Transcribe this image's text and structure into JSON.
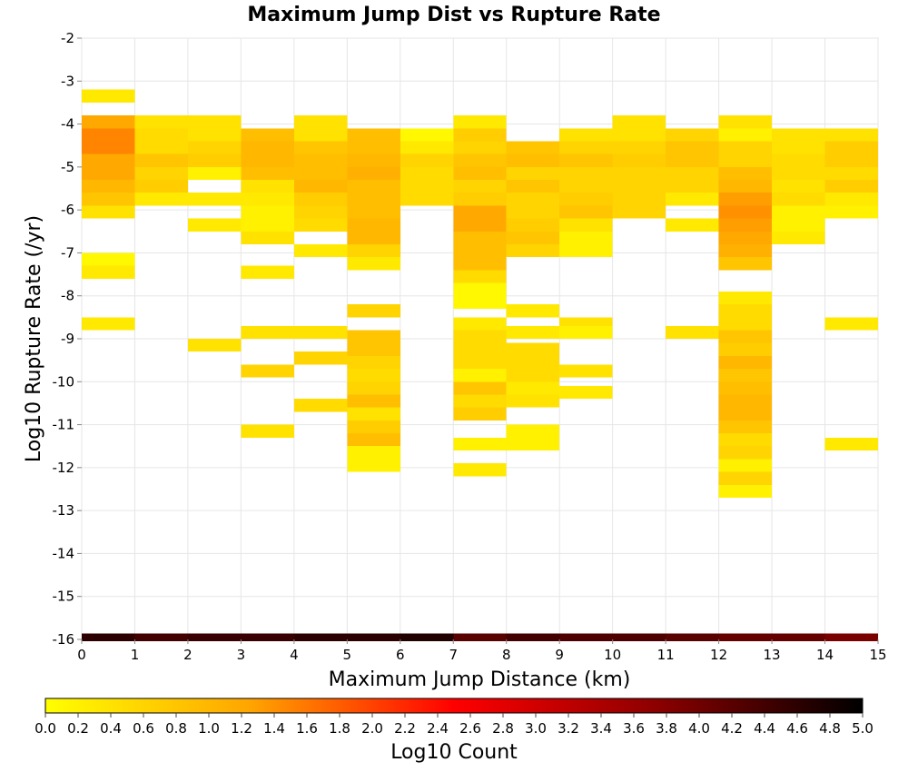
{
  "chart_data": {
    "type": "heatmap",
    "title": "Maximum Jump Dist vs Rupture Rate",
    "xlabel": "Maximum Jump Distance (km)",
    "ylabel": "Log10 Rupture Rate (/yr)",
    "colorbar_label": "Log10 Count",
    "xlim": [
      0,
      15
    ],
    "ylim": [
      -16,
      -2
    ],
    "x_ticks": [
      "0",
      "1",
      "2",
      "3",
      "4",
      "5",
      "6",
      "7",
      "8",
      "9",
      "10",
      "11",
      "12",
      "13",
      "14",
      "15"
    ],
    "y_ticks": [
      "-2",
      "-3",
      "-4",
      "-5",
      "-6",
      "-7",
      "-8",
      "-9",
      "-10",
      "-11",
      "-12",
      "-13",
      "-14",
      "-15",
      "-16"
    ],
    "color_ticks": [
      "0.0",
      "0.2",
      "0.4",
      "0.6",
      "0.8",
      "1.0",
      "1.2",
      "1.4",
      "1.6",
      "1.8",
      "2.0",
      "2.2",
      "2.4",
      "2.6",
      "2.8",
      "3.0",
      "3.2",
      "3.4",
      "3.6",
      "3.8",
      "4.0",
      "4.2",
      "4.4",
      "4.6",
      "4.8",
      "5.0"
    ],
    "color_range": [
      0,
      5
    ],
    "colormap": [
      "#ffff00",
      "#ffa500",
      "#ff0000",
      "#8b0000",
      "#000000"
    ],
    "grid": true,
    "bin_width_x": 1,
    "bin_height_y": 0.3,
    "cells_columns": "x = bin start (km), y = bin start (log10 rate), v = log10 count",
    "cells": [
      [
        0,
        -3.2,
        0.3
      ],
      [
        0,
        -3.8,
        1.2
      ],
      [
        0,
        -4.1,
        1.5
      ],
      [
        0,
        -4.4,
        1.5
      ],
      [
        0,
        -4.7,
        1.2
      ],
      [
        0,
        -5.0,
        1.2
      ],
      [
        0,
        -5.3,
        1.0
      ],
      [
        0,
        -5.6,
        0.8
      ],
      [
        0,
        -5.9,
        0.4
      ],
      [
        0,
        -7.0,
        0.1
      ],
      [
        0,
        -7.3,
        0.3
      ],
      [
        0,
        -8.5,
        0.3
      ],
      [
        1,
        -3.8,
        0.4
      ],
      [
        1,
        -4.1,
        0.5
      ],
      [
        1,
        -4.4,
        0.5
      ],
      [
        1,
        -4.7,
        0.8
      ],
      [
        1,
        -5.0,
        0.6
      ],
      [
        1,
        -5.3,
        0.7
      ],
      [
        1,
        -5.6,
        0.3
      ],
      [
        2,
        -3.8,
        0.4
      ],
      [
        2,
        -4.1,
        0.4
      ],
      [
        2,
        -4.4,
        0.6
      ],
      [
        2,
        -4.7,
        0.7
      ],
      [
        2,
        -5.0,
        0.2
      ],
      [
        2,
        -5.6,
        0.3
      ],
      [
        2,
        -6.2,
        0.3
      ],
      [
        2,
        -9.0,
        0.4
      ],
      [
        3,
        -4.1,
        0.9
      ],
      [
        3,
        -4.4,
        1.0
      ],
      [
        3,
        -4.7,
        1.0
      ],
      [
        3,
        -5.0,
        0.9
      ],
      [
        3,
        -5.3,
        0.4
      ],
      [
        3,
        -5.6,
        0.3
      ],
      [
        3,
        -5.9,
        0.2
      ],
      [
        3,
        -6.2,
        0.2
      ],
      [
        3,
        -6.5,
        0.4
      ],
      [
        3,
        -7.3,
        0.3
      ],
      [
        3,
        -8.7,
        0.4
      ],
      [
        3,
        -9.6,
        0.6
      ],
      [
        3,
        -11.0,
        0.4
      ],
      [
        4,
        -3.8,
        0.4
      ],
      [
        4,
        -4.1,
        0.4
      ],
      [
        4,
        -4.4,
        0.8
      ],
      [
        4,
        -4.7,
        0.9
      ],
      [
        4,
        -5.0,
        0.9
      ],
      [
        4,
        -5.3,
        1.0
      ],
      [
        4,
        -5.6,
        0.7
      ],
      [
        4,
        -5.9,
        0.6
      ],
      [
        4,
        -6.2,
        0.5
      ],
      [
        4,
        -6.8,
        0.3
      ],
      [
        4,
        -8.7,
        0.4
      ],
      [
        4,
        -9.3,
        0.6
      ],
      [
        4,
        -10.4,
        0.5
      ],
      [
        5,
        -4.1,
        0.9
      ],
      [
        5,
        -4.4,
        0.9
      ],
      [
        5,
        -4.7,
        1.0
      ],
      [
        5,
        -5.0,
        1.1
      ],
      [
        5,
        -5.3,
        0.9
      ],
      [
        5,
        -5.6,
        0.9
      ],
      [
        5,
        -5.9,
        0.9
      ],
      [
        5,
        -6.2,
        1.0
      ],
      [
        5,
        -6.5,
        1.0
      ],
      [
        5,
        -6.8,
        0.6
      ],
      [
        5,
        -7.1,
        0.3
      ],
      [
        5,
        -8.2,
        0.6
      ],
      [
        5,
        -8.8,
        0.8
      ],
      [
        5,
        -9.1,
        0.8
      ],
      [
        5,
        -9.4,
        0.6
      ],
      [
        5,
        -9.7,
        0.5
      ],
      [
        5,
        -10.0,
        0.6
      ],
      [
        5,
        -10.3,
        0.9
      ],
      [
        5,
        -10.6,
        0.4
      ],
      [
        5,
        -10.9,
        0.7
      ],
      [
        5,
        -11.2,
        0.9
      ],
      [
        5,
        -11.5,
        0.2
      ],
      [
        5,
        -11.8,
        0.2
      ],
      [
        6,
        -4.1,
        0.1
      ],
      [
        6,
        -4.4,
        0.3
      ],
      [
        6,
        -4.7,
        0.6
      ],
      [
        6,
        -5.0,
        0.5
      ],
      [
        6,
        -5.3,
        0.5
      ],
      [
        6,
        -5.6,
        0.5
      ],
      [
        7,
        -3.8,
        0.3
      ],
      [
        7,
        -4.1,
        0.7
      ],
      [
        7,
        -4.4,
        0.6
      ],
      [
        7,
        -4.7,
        0.8
      ],
      [
        7,
        -5.0,
        0.9
      ],
      [
        7,
        -5.3,
        0.6
      ],
      [
        7,
        -5.6,
        0.7
      ],
      [
        7,
        -5.9,
        1.2
      ],
      [
        7,
        -6.2,
        1.2
      ],
      [
        7,
        -6.5,
        0.9
      ],
      [
        7,
        -6.8,
        0.9
      ],
      [
        7,
        -7.1,
        0.9
      ],
      [
        7,
        -7.4,
        0.5
      ],
      [
        7,
        -7.7,
        0.1
      ],
      [
        7,
        -8.0,
        0.1
      ],
      [
        7,
        -8.5,
        0.3
      ],
      [
        7,
        -8.8,
        0.5
      ],
      [
        7,
        -9.1,
        0.5
      ],
      [
        7,
        -9.4,
        0.5
      ],
      [
        7,
        -9.7,
        0.2
      ],
      [
        7,
        -10.0,
        0.8
      ],
      [
        7,
        -10.3,
        0.5
      ],
      [
        7,
        -10.6,
        0.7
      ],
      [
        7,
        -11.3,
        0.2
      ],
      [
        7,
        -11.9,
        0.3
      ],
      [
        8,
        -4.4,
        0.8
      ],
      [
        8,
        -4.7,
        0.9
      ],
      [
        8,
        -5.0,
        0.6
      ],
      [
        8,
        -5.3,
        0.8
      ],
      [
        8,
        -5.6,
        0.6
      ],
      [
        8,
        -5.9,
        0.6
      ],
      [
        8,
        -6.2,
        0.7
      ],
      [
        8,
        -6.5,
        0.8
      ],
      [
        8,
        -6.8,
        0.6
      ],
      [
        8,
        -8.2,
        0.3
      ],
      [
        8,
        -8.7,
        0.3
      ],
      [
        8,
        -9.1,
        0.5
      ],
      [
        8,
        -9.4,
        0.5
      ],
      [
        8,
        -9.7,
        0.5
      ],
      [
        8,
        -10.0,
        0.3
      ],
      [
        8,
        -10.3,
        0.4
      ],
      [
        8,
        -11.0,
        0.2
      ],
      [
        8,
        -11.3,
        0.2
      ],
      [
        9,
        -4.1,
        0.4
      ],
      [
        9,
        -4.4,
        0.6
      ],
      [
        9,
        -4.7,
        0.8
      ],
      [
        9,
        -5.0,
        0.6
      ],
      [
        9,
        -5.3,
        0.6
      ],
      [
        9,
        -5.6,
        0.7
      ],
      [
        9,
        -5.9,
        0.8
      ],
      [
        9,
        -6.2,
        0.4
      ],
      [
        9,
        -6.5,
        0.2
      ],
      [
        9,
        -6.8,
        0.2
      ],
      [
        9,
        -8.5,
        0.4
      ],
      [
        9,
        -8.7,
        0.2
      ],
      [
        9,
        -9.6,
        0.4
      ],
      [
        9,
        -10.1,
        0.3
      ],
      [
        10,
        -3.8,
        0.4
      ],
      [
        10,
        -4.1,
        0.4
      ],
      [
        10,
        -4.4,
        0.6
      ],
      [
        10,
        -4.7,
        0.7
      ],
      [
        10,
        -5.0,
        0.6
      ],
      [
        10,
        -5.3,
        0.6
      ],
      [
        10,
        -5.6,
        0.6
      ],
      [
        10,
        -5.9,
        0.6
      ],
      [
        11,
        -4.1,
        0.6
      ],
      [
        11,
        -4.4,
        0.8
      ],
      [
        11,
        -4.7,
        0.8
      ],
      [
        11,
        -5.0,
        0.6
      ],
      [
        11,
        -5.3,
        0.6
      ],
      [
        11,
        -5.6,
        0.3
      ],
      [
        11,
        -6.2,
        0.3
      ],
      [
        11,
        -8.7,
        0.4
      ],
      [
        12,
        -3.8,
        0.4
      ],
      [
        12,
        -4.1,
        0.2
      ],
      [
        12,
        -4.4,
        0.6
      ],
      [
        12,
        -4.7,
        0.6
      ],
      [
        12,
        -5.0,
        0.9
      ],
      [
        12,
        -5.3,
        1.0
      ],
      [
        12,
        -5.6,
        1.3
      ],
      [
        12,
        -5.9,
        1.4
      ],
      [
        12,
        -6.2,
        1.3
      ],
      [
        12,
        -6.5,
        1.2
      ],
      [
        12,
        -6.8,
        1.1
      ],
      [
        12,
        -7.1,
        0.8
      ],
      [
        12,
        -7.9,
        0.3
      ],
      [
        12,
        -8.2,
        0.5
      ],
      [
        12,
        -8.5,
        0.5
      ],
      [
        12,
        -8.8,
        0.8
      ],
      [
        12,
        -9.1,
        0.7
      ],
      [
        12,
        -9.4,
        1.0
      ],
      [
        12,
        -9.7,
        0.8
      ],
      [
        12,
        -10.0,
        0.9
      ],
      [
        12,
        -10.3,
        1.0
      ],
      [
        12,
        -10.6,
        1.0
      ],
      [
        12,
        -10.9,
        0.8
      ],
      [
        12,
        -11.2,
        0.5
      ],
      [
        12,
        -11.5,
        0.6
      ],
      [
        12,
        -11.8,
        0.2
      ],
      [
        12,
        -12.1,
        0.6
      ],
      [
        12,
        -12.4,
        0.2
      ],
      [
        13,
        -4.1,
        0.4
      ],
      [
        13,
        -4.4,
        0.4
      ],
      [
        13,
        -4.7,
        0.5
      ],
      [
        13,
        -5.0,
        0.5
      ],
      [
        13,
        -5.3,
        0.4
      ],
      [
        13,
        -5.6,
        0.5
      ],
      [
        13,
        -5.9,
        0.2
      ],
      [
        13,
        -6.2,
        0.2
      ],
      [
        13,
        -6.5,
        0.3
      ],
      [
        14,
        -4.1,
        0.4
      ],
      [
        14,
        -4.4,
        0.7
      ],
      [
        14,
        -4.7,
        0.7
      ],
      [
        14,
        -5.0,
        0.5
      ],
      [
        14,
        -5.3,
        0.7
      ],
      [
        14,
        -5.6,
        0.3
      ],
      [
        14,
        -5.9,
        0.2
      ],
      [
        14,
        -8.5,
        0.3
      ],
      [
        14,
        -11.3,
        0.3
      ]
    ],
    "bottom_row": {
      "y": -16,
      "values": [
        4.6,
        4.4,
        4.5,
        4.5,
        4.6,
        4.6,
        4.7,
        4.2,
        4.4,
        4.3,
        4.3,
        4.2,
        4.1,
        4.1,
        3.9
      ]
    }
  }
}
